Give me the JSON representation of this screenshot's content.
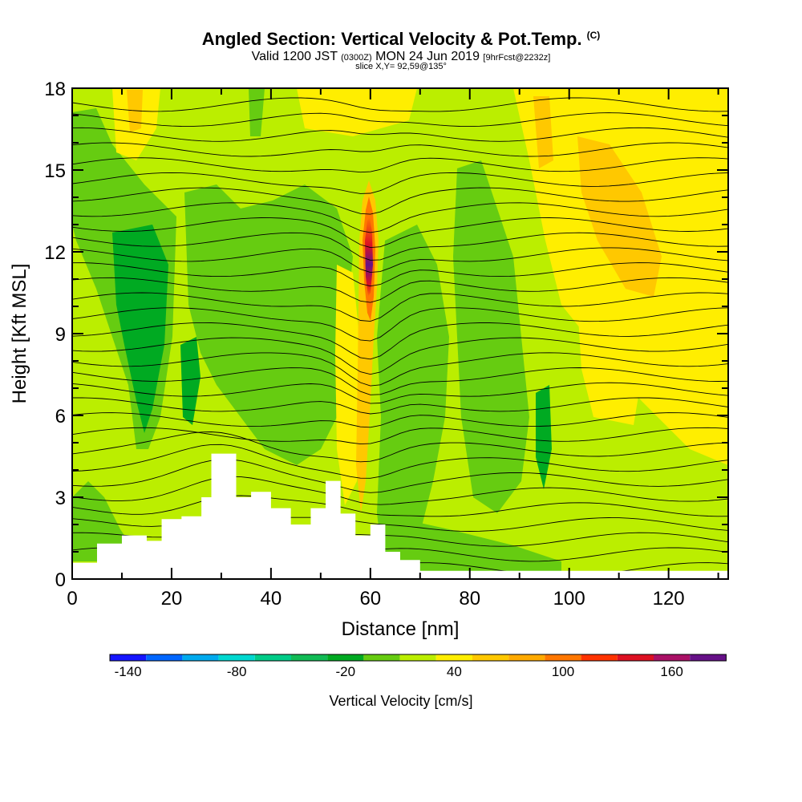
{
  "title": {
    "main": "Angled Section: Vertical Velocity & Pot.Temp.",
    "main_suffix": "(C)",
    "valid_prefix": "Valid 1200 JST",
    "valid_utc": "(0300Z)",
    "valid_date": "MON 24 Jun 2019",
    "forecast": "[9hrFcst@2232z]",
    "slice": "slice X,Y= 92,59@135°"
  },
  "chart_data": {
    "type": "heatmap",
    "xlabel": "Distance [nm]",
    "ylabel": "Height [Kft MSL]",
    "xlim": [
      0,
      132
    ],
    "ylim": [
      0,
      18
    ],
    "x_ticks": [
      0,
      20,
      40,
      60,
      80,
      100,
      120
    ],
    "y_ticks": [
      0,
      3,
      6,
      9,
      12,
      15,
      18
    ],
    "terrain_kft": [
      {
        "x": 0,
        "y": 0.6
      },
      {
        "x": 5,
        "y": 1.3
      },
      {
        "x": 10,
        "y": 1.6
      },
      {
        "x": 15,
        "y": 1.4
      },
      {
        "x": 18,
        "y": 2.2
      },
      {
        "x": 22,
        "y": 2.3
      },
      {
        "x": 26,
        "y": 3.0
      },
      {
        "x": 28,
        "y": 4.6
      },
      {
        "x": 30,
        "y": 4.6
      },
      {
        "x": 33,
        "y": 3.0
      },
      {
        "x": 36,
        "y": 3.2
      },
      {
        "x": 40,
        "y": 2.6
      },
      {
        "x": 44,
        "y": 2.0
      },
      {
        "x": 48,
        "y": 2.6
      },
      {
        "x": 51,
        "y": 3.6
      },
      {
        "x": 54,
        "y": 2.4
      },
      {
        "x": 57,
        "y": 1.6
      },
      {
        "x": 60,
        "y": 2.0
      },
      {
        "x": 63,
        "y": 1.0
      },
      {
        "x": 66,
        "y": 0.7
      },
      {
        "x": 70,
        "y": 0.3
      },
      {
        "x": 74,
        "y": 0.3
      },
      {
        "x": 132,
        "y": 0.3
      }
    ],
    "updraft_core": {
      "x": 59.5,
      "y_range": [
        9.8,
        14.2
      ],
      "peak_cm_s": 160
    },
    "colorbar": {
      "title": "Vertical Velocity [cm/s]",
      "tick_labels": [
        "-140",
        "-80",
        "-20",
        "40",
        "100",
        "160"
      ],
      "levels": [
        -150,
        -130,
        -110,
        -90,
        -70,
        -50,
        -30,
        -10,
        10,
        30,
        50,
        70,
        90,
        110,
        130,
        150,
        170
      ],
      "colors": [
        "#1515ff",
        "#0066ff",
        "#00aaee",
        "#00d8d0",
        "#00cc88",
        "#11bb55",
        "#00aa22",
        "#66cc11",
        "#bbee00",
        "#ffee00",
        "#ffc800",
        "#ffaa00",
        "#ff7700",
        "#ff3300",
        "#dd1122",
        "#aa1166",
        "#661188"
      ]
    }
  }
}
